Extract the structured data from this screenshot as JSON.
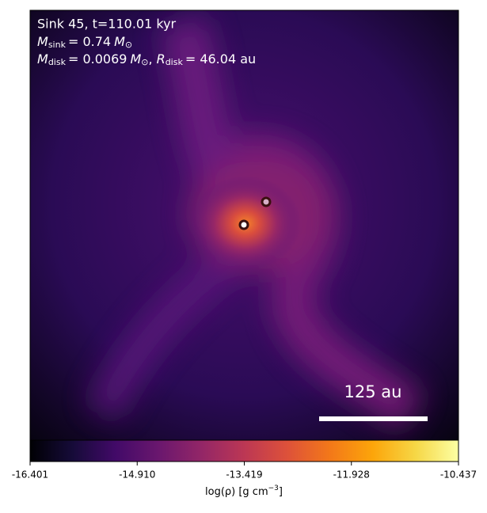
{
  "chart_data": {
    "type": "heatmap",
    "annotations": {
      "line1": "Sink 45, t=110.01 kyr",
      "line2": [
        "M",
        "sink",
        "= 0.74",
        "M",
        "⊙"
      ],
      "line3": [
        "M",
        "disk",
        "= 0.0069",
        "M",
        "⊙",
        ",",
        "R",
        "disk",
        "= 46.04 au"
      ]
    },
    "scale_bar_label": "125 au",
    "colorbar": {
      "label": [
        "log(ρ) [g cm",
        "−3",
        "]"
      ],
      "clim": [
        -16.401,
        -10.437
      ],
      "ticks": [
        -16.401,
        {
          "value": -14.91,
          "label": "-14.910"
        },
        -13.419,
        -11.928,
        -10.437
      ],
      "colormap": "inferno"
    }
  }
}
